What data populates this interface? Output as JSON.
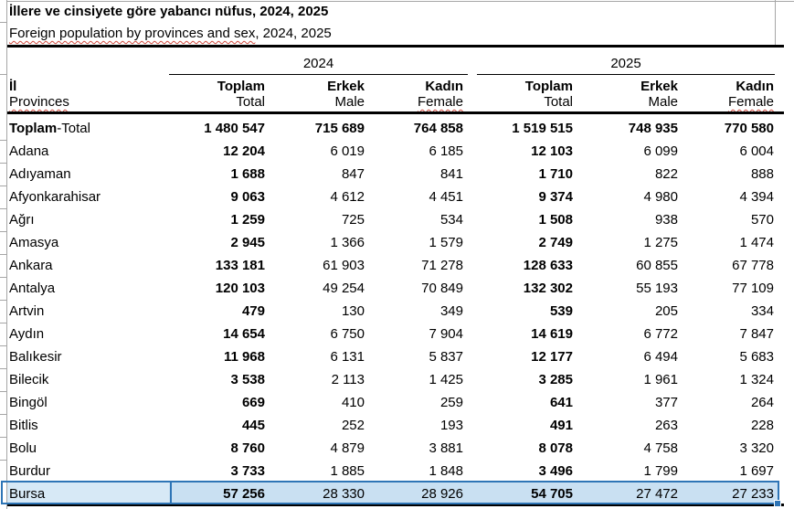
{
  "title": "İllere ve cinsiyete göre yabancı nüfus, 2024, 2025",
  "subtitle": {
    "underlined": "Foreign population by provinces and sex",
    "plain": ", 2024, 2025"
  },
  "table": {
    "year_groups": [
      "2024",
      "2025"
    ],
    "row_header": {
      "tr": "İl",
      "en": "Provinces",
      "spellcheck": true
    },
    "columns": [
      {
        "tr": "Toplam",
        "en": "Total",
        "spellcheck": false
      },
      {
        "tr": "Erkek",
        "en": "Male",
        "spellcheck": false
      },
      {
        "tr": "Kadın",
        "en": "Female",
        "spellcheck": true
      },
      {
        "tr": "Toplam",
        "en": "Total",
        "spellcheck": false
      },
      {
        "tr": "Erkek",
        "en": "Male",
        "spellcheck": false
      },
      {
        "tr": "Kadın",
        "en": "Female",
        "spellcheck": true
      }
    ],
    "rows": [
      {
        "label": "Toplam-Total",
        "label_parts": {
          "bold": "Toplam",
          "regular": "-Total"
        },
        "bold_all": true,
        "values": [
          "1 480 547",
          "715 689",
          "764 858",
          "1 519 515",
          "748 935",
          "770 580"
        ]
      },
      {
        "label": "Adana",
        "values": [
          "12 204",
          "6 019",
          "6 185",
          "12 103",
          "6 099",
          "6 004"
        ]
      },
      {
        "label": "Adıyaman",
        "values": [
          "1 688",
          "847",
          "841",
          "1 710",
          "822",
          "888"
        ]
      },
      {
        "label": "Afyonkarahisar",
        "values": [
          "9 063",
          "4 612",
          "4 451",
          "9 374",
          "4 980",
          "4 394"
        ]
      },
      {
        "label": "Ağrı",
        "values": [
          "1 259",
          "725",
          "534",
          "1 508",
          "938",
          "570"
        ]
      },
      {
        "label": "Amasya",
        "values": [
          "2 945",
          "1 366",
          "1 579",
          "2 749",
          "1 275",
          "1 474"
        ]
      },
      {
        "label": "Ankara",
        "values": [
          "133 181",
          "61 903",
          "71 278",
          "128 633",
          "60 855",
          "67 778"
        ]
      },
      {
        "label": "Antalya",
        "values": [
          "120 103",
          "49 254",
          "70 849",
          "132 302",
          "55 193",
          "77 109"
        ]
      },
      {
        "label": "Artvin",
        "values": [
          "479",
          "130",
          "349",
          "539",
          "205",
          "334"
        ]
      },
      {
        "label": "Aydın",
        "values": [
          "14 654",
          "6 750",
          "7 904",
          "14 619",
          "6 772",
          "7 847"
        ]
      },
      {
        "label": "Balıkesir",
        "values": [
          "11 968",
          "6 131",
          "5 837",
          "12 177",
          "6 494",
          "5 683"
        ]
      },
      {
        "label": "Bilecik",
        "values": [
          "3 538",
          "2 113",
          "1 425",
          "3 285",
          "1 961",
          "1 324"
        ]
      },
      {
        "label": "Bingöl",
        "values": [
          "669",
          "410",
          "259",
          "641",
          "377",
          "264"
        ]
      },
      {
        "label": "Bitlis",
        "values": [
          "445",
          "252",
          "193",
          "491",
          "263",
          "228"
        ]
      },
      {
        "label": "Bolu",
        "values": [
          "8 760",
          "4 879",
          "3 881",
          "8 078",
          "4 758",
          "3 320"
        ]
      },
      {
        "label": "Burdur",
        "values": [
          "3 733",
          "1 885",
          "1 848",
          "3 496",
          "1 799",
          "1 697"
        ]
      },
      {
        "label": "Bursa",
        "selected": true,
        "values": [
          "57 256",
          "28 330",
          "28 926",
          "54 705",
          "27 472",
          "27 233"
        ]
      }
    ]
  },
  "colors": {
    "selection_border": "#2e75b6",
    "selection_fill": "#c9e0f2",
    "selection_fill_active": "#d7e9f6",
    "spellcheck_underline": "#cf4a3f",
    "gridline": "#a6a6a6",
    "rule_line": "#000000"
  }
}
